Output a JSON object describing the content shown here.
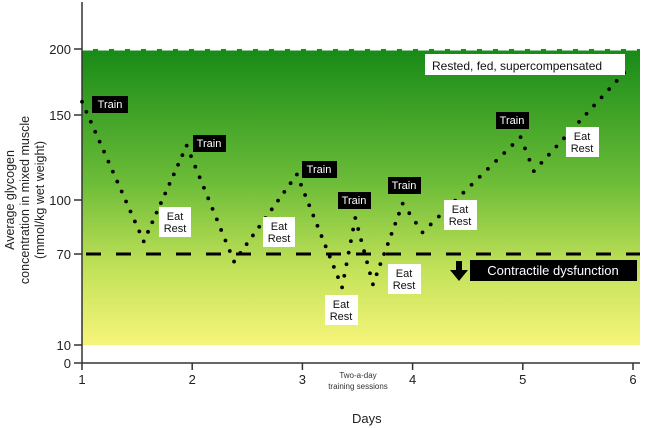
{
  "chart_data": {
    "type": "line",
    "style": "dotted",
    "title": "",
    "xlabel": "Days",
    "ylabel_line1": "Average glycogen",
    "ylabel_line2": "concentration in mixed muscle",
    "ylabel_line3": "(mmol/kg wet weight)",
    "x_ticks": [
      "1",
      "2",
      "3",
      "4",
      "5",
      "6"
    ],
    "y_ticks": [
      "0",
      "10",
      "70",
      "100",
      "150",
      "200"
    ],
    "xlim": [
      1,
      6
    ],
    "ylim": [
      0,
      200
    ],
    "y_scale": "non-linear (piecewise)",
    "series": [
      {
        "name": "Glycogen",
        "points": [
          [
            1.0,
            160
          ],
          [
            1.56,
            77
          ],
          [
            1.95,
            132
          ],
          [
            2.38,
            65
          ],
          [
            2.95,
            115
          ],
          [
            3.36,
            48
          ],
          [
            3.48,
            90
          ],
          [
            3.64,
            50
          ],
          [
            3.91,
            98
          ],
          [
            4.09,
            82
          ],
          [
            4.98,
            137
          ],
          [
            5.1,
            117
          ],
          [
            5.92,
            182
          ]
        ]
      }
    ],
    "thresholds": [
      {
        "value": 200,
        "style": "white-dashed"
      },
      {
        "value": 70,
        "style": "black-dashed"
      }
    ],
    "annotations": {
      "train": "Train",
      "eat": "Eat",
      "rest": "Rest",
      "supercomp": "Rested, fed, supercompensated",
      "dysfunction": "Contractile dysfunction",
      "two_a_day_1": "Two-a-day",
      "two_a_day_2": "training sessions"
    },
    "colors": {
      "top": "#178a17",
      "mid": "#7cc23c",
      "bottom": "#f6f57a",
      "dots": "#000000"
    }
  }
}
